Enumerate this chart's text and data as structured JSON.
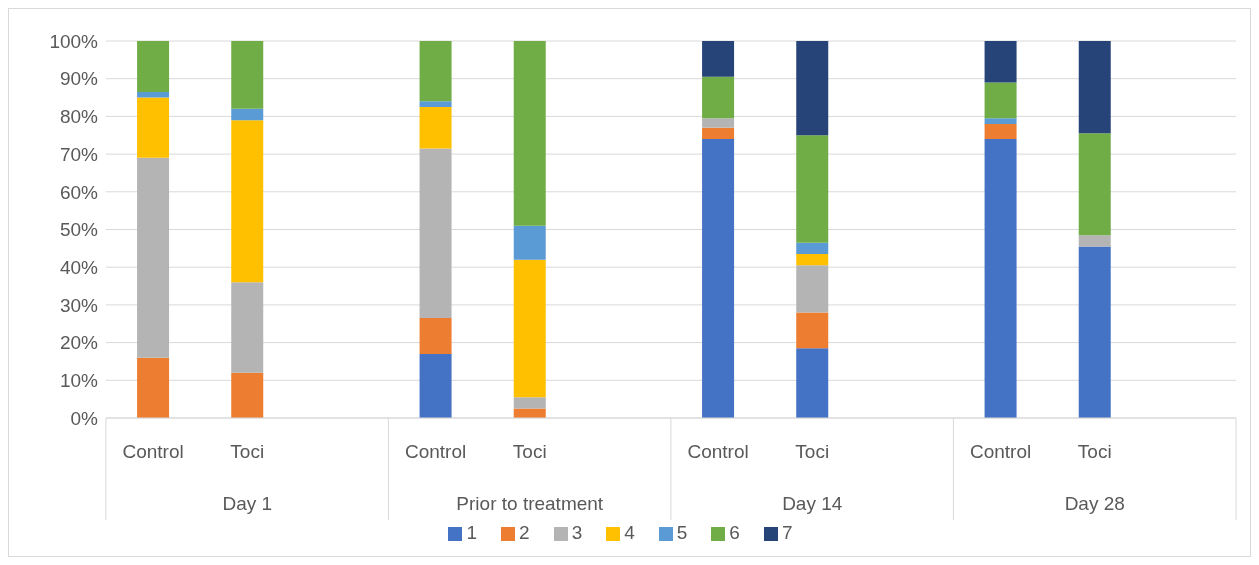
{
  "chart_data": {
    "type": "bar",
    "stacked": true,
    "categories": [
      "Control",
      "Toci",
      null,
      "Control",
      "Toci",
      null,
      "Control",
      "Toci",
      null,
      "Control",
      "Toci",
      null
    ],
    "annotations": [
      "Day 1",
      "Prior to treatment",
      "Day 14",
      "Day 28"
    ],
    "series": [
      {
        "name": "1",
        "color": "#4472c4",
        "values": [
          0,
          0,
          null,
          17,
          0,
          null,
          74,
          18.5,
          null,
          74,
          45.5,
          null
        ]
      },
      {
        "name": "2",
        "color": "#ed7d31",
        "values": [
          16,
          12,
          null,
          9.5,
          2.5,
          null,
          3,
          9.5,
          null,
          4,
          0,
          null
        ]
      },
      {
        "name": "3",
        "color": "#b4b4b4",
        "values": [
          53,
          24,
          null,
          45,
          3,
          null,
          2.5,
          12.5,
          null,
          0,
          3,
          null
        ]
      },
      {
        "name": "4",
        "color": "#ffc000",
        "values": [
          16,
          43,
          null,
          11,
          36.5,
          null,
          0,
          3,
          null,
          0,
          0,
          null
        ]
      },
      {
        "name": "5",
        "color": "#5b9bd5",
        "values": [
          1.5,
          3,
          null,
          1.5,
          9,
          null,
          0,
          3,
          null,
          1.5,
          0,
          null
        ]
      },
      {
        "name": "6",
        "color": "#70ad47",
        "values": [
          13.5,
          18,
          null,
          16,
          49,
          null,
          11,
          28.5,
          null,
          9.5,
          27,
          null
        ]
      },
      {
        "name": "7",
        "color": "#264478",
        "values": [
          0,
          0,
          null,
          0,
          0,
          null,
          9.5,
          25,
          null,
          11,
          24.5,
          null
        ]
      }
    ],
    "ylim": [
      0,
      100
    ],
    "yticks": [
      {
        "value": 0,
        "label": "0%"
      },
      {
        "value": 10,
        "label": "10%"
      },
      {
        "value": 20,
        "label": "20%"
      },
      {
        "value": 30,
        "label": "30%"
      },
      {
        "value": 40,
        "label": "40%"
      },
      {
        "value": 50,
        "label": "50%"
      },
      {
        "value": 60,
        "label": "60%"
      },
      {
        "value": 70,
        "label": "70%"
      },
      {
        "value": 80,
        "label": "80%"
      },
      {
        "value": 90,
        "label": "90%"
      },
      {
        "value": 100,
        "label": "100%"
      }
    ],
    "grid": "y",
    "legend": "bottom"
  }
}
